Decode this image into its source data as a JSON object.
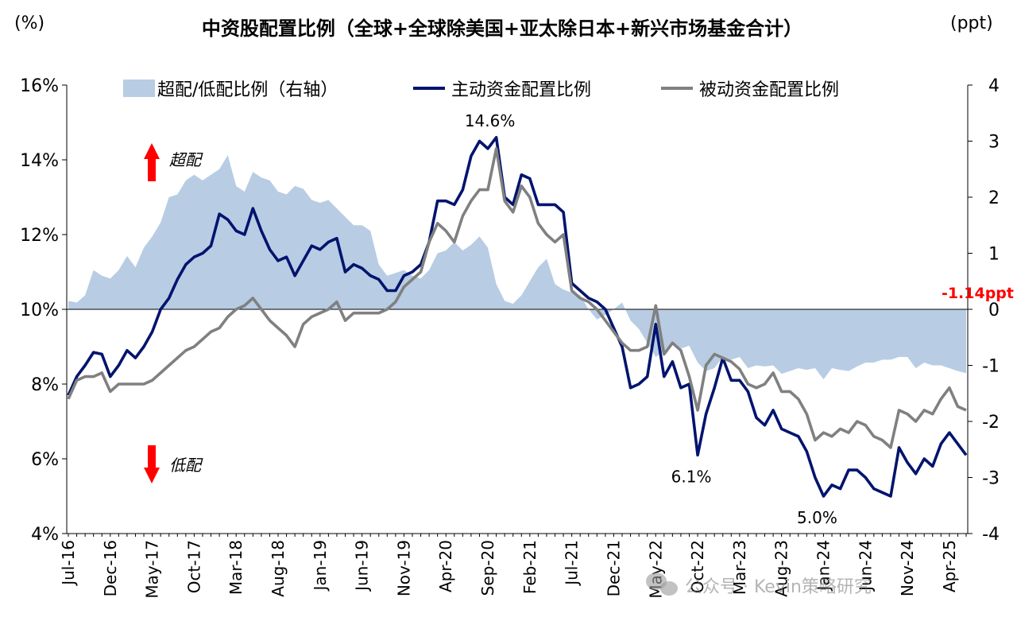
{
  "chart_data": {
    "type": "area+line",
    "title": "中资股配置比例（全球+全球除美国+亚太除日本+新兴市场基金合计）",
    "left_unit": "(%)",
    "right_unit": "(ppt)",
    "left_axis": {
      "min": 4,
      "max": 16,
      "ticks": [
        "4%",
        "6%",
        "8%",
        "10%",
        "12%",
        "14%",
        "16%"
      ],
      "tick_values": [
        4,
        6,
        8,
        10,
        12,
        14,
        16
      ]
    },
    "right_axis": {
      "min": -4,
      "max": 4,
      "ticks": [
        "-4",
        "-3",
        "-2",
        "-1",
        "0",
        "1",
        "2",
        "3",
        "4"
      ],
      "tick_values": [
        -4,
        -3,
        -2,
        -1,
        0,
        1,
        2,
        3,
        4
      ]
    },
    "x_labels": [
      "Jul-16",
      "Dec-16",
      "May-17",
      "Oct-17",
      "Mar-18",
      "Aug-18",
      "Jan-19",
      "Jun-19",
      "Nov-19",
      "Apr-20",
      "Sep-20",
      "Feb-21",
      "Jul-21",
      "Dec-21",
      "May-22",
      "Oct-22",
      "Mar-23",
      "Aug-23",
      "Jan-24",
      "Jun-24",
      "Nov-24",
      "Apr-25"
    ],
    "x_label_index": [
      0,
      5,
      10,
      15,
      20,
      25,
      30,
      35,
      40,
      45,
      50,
      55,
      60,
      65,
      70,
      75,
      80,
      85,
      90,
      95,
      100,
      105
    ],
    "n_points": 108,
    "series": [
      {
        "name": "超配/低配比例（右轴）",
        "axis": "right",
        "kind": "area",
        "color": "#b8cce4",
        "values": [
          0.15,
          0.12,
          0.25,
          0.7,
          0.6,
          0.55,
          0.7,
          0.95,
          0.75,
          1.1,
          1.3,
          1.55,
          2.0,
          2.05,
          2.3,
          2.4,
          2.3,
          2.4,
          2.5,
          2.75,
          2.2,
          2.1,
          2.45,
          2.35,
          2.3,
          2.1,
          2.05,
          2.2,
          2.15,
          1.95,
          1.9,
          1.95,
          1.8,
          1.65,
          1.5,
          1.5,
          1.4,
          0.8,
          0.6,
          0.65,
          0.7,
          0.6,
          0.55,
          0.7,
          1.0,
          1.05,
          1.2,
          1.05,
          1.15,
          1.3,
          1.1,
          0.45,
          0.15,
          0.1,
          0.25,
          0.5,
          0.75,
          0.9,
          0.45,
          0.35,
          0.3,
          0.25,
          0.0,
          -0.18,
          -0.1,
          0.0,
          0.12,
          -0.2,
          -0.35,
          -0.6,
          -0.85,
          -0.75,
          -0.6,
          -0.7,
          -0.65,
          -0.95,
          -1.1,
          -1.05,
          -0.85,
          -0.9,
          -0.85,
          -1.05,
          -1.0,
          -1.02,
          -1.0,
          -1.15,
          -1.1,
          -1.05,
          -1.08,
          -1.05,
          -1.25,
          -1.05,
          -1.08,
          -1.1,
          -1.02,
          -0.95,
          -0.95,
          -0.9,
          -0.9,
          -0.85,
          -0.85,
          -1.05,
          -0.95,
          -1.0,
          -1.0,
          -1.05,
          -1.1,
          -1.14
        ]
      },
      {
        "name": "主动资金配置比例",
        "axis": "left",
        "kind": "line",
        "color": "#00146e",
        "values": [
          7.7,
          8.2,
          8.5,
          8.85,
          8.8,
          8.2,
          8.5,
          8.9,
          8.7,
          9.0,
          9.4,
          10.0,
          10.3,
          10.8,
          11.2,
          11.4,
          11.5,
          11.7,
          12.55,
          12.4,
          12.1,
          12.0,
          12.7,
          12.1,
          11.6,
          11.3,
          11.4,
          10.9,
          11.3,
          11.7,
          11.6,
          11.8,
          11.9,
          11.0,
          11.2,
          11.1,
          10.9,
          10.8,
          10.5,
          10.5,
          10.9,
          11.0,
          11.2,
          11.8,
          12.9,
          12.9,
          12.8,
          13.2,
          14.1,
          14.5,
          14.3,
          14.6,
          13.0,
          12.8,
          13.6,
          13.5,
          12.8,
          12.8,
          12.8,
          12.6,
          10.7,
          10.5,
          10.3,
          10.2,
          10.0,
          9.5,
          9.0,
          7.9,
          8.0,
          8.2,
          9.6,
          8.2,
          8.6,
          7.9,
          8.0,
          6.1,
          7.2,
          7.9,
          8.7,
          8.1,
          8.1,
          7.8,
          7.1,
          6.9,
          7.3,
          6.8,
          6.7,
          6.6,
          6.2,
          5.5,
          5.0,
          5.3,
          5.2,
          5.7,
          5.7,
          5.5,
          5.2,
          5.1,
          5.0,
          6.3,
          5.9,
          5.6,
          6.0,
          5.8,
          6.4,
          6.7,
          6.4,
          6.1
        ]
      },
      {
        "name": "被动资金配置比例",
        "axis": "left",
        "kind": "line",
        "color": "#808080",
        "values": [
          7.6,
          8.1,
          8.2,
          8.2,
          8.3,
          7.8,
          8.0,
          8.0,
          8.0,
          8.0,
          8.1,
          8.3,
          8.5,
          8.7,
          8.9,
          9.0,
          9.2,
          9.4,
          9.5,
          9.8,
          10.0,
          10.1,
          10.3,
          10.0,
          9.7,
          9.5,
          9.3,
          9.0,
          9.6,
          9.8,
          9.9,
          10.0,
          10.2,
          9.7,
          9.9,
          9.9,
          9.9,
          9.9,
          10.0,
          10.2,
          10.6,
          10.8,
          11.0,
          11.8,
          12.3,
          12.1,
          11.8,
          12.5,
          12.9,
          13.2,
          13.2,
          14.3,
          12.9,
          12.6,
          13.3,
          13.0,
          12.3,
          12.0,
          11.8,
          12.0,
          10.5,
          10.3,
          10.2,
          10.0,
          9.7,
          9.4,
          9.1,
          8.9,
          8.9,
          9.0,
          10.1,
          8.8,
          9.1,
          8.9,
          8.2,
          7.3,
          8.5,
          8.8,
          8.7,
          8.6,
          8.4,
          8.0,
          7.9,
          8.0,
          8.3,
          7.8,
          7.8,
          7.6,
          7.2,
          6.5,
          6.7,
          6.6,
          6.8,
          6.7,
          7.0,
          6.9,
          6.6,
          6.5,
          6.3,
          7.3,
          7.2,
          7.0,
          7.3,
          7.2,
          7.6,
          7.9,
          7.4,
          7.3
        ]
      }
    ],
    "annotations": [
      {
        "text": "14.6%",
        "index": 51,
        "value": 14.6,
        "axis": "left",
        "place": "above"
      },
      {
        "text": "6.1%",
        "index": 75,
        "value": 6.1,
        "axis": "left",
        "place": "below"
      },
      {
        "text": "5.0%",
        "index": 90,
        "value": 5.0,
        "axis": "left",
        "place": "below"
      },
      {
        "text": "-1.14ppt",
        "index": 107,
        "value": -1.14,
        "axis": "right",
        "place": "near-zero",
        "color": "#ff0000"
      }
    ],
    "arrows": [
      {
        "label": "超配",
        "direction": "up",
        "color": "#ff0000"
      },
      {
        "label": "低配",
        "direction": "down",
        "color": "#ff0000"
      }
    ]
  },
  "watermark": "公众号 · Kevin策略研究",
  "watermark_icon": "wechat-icon"
}
